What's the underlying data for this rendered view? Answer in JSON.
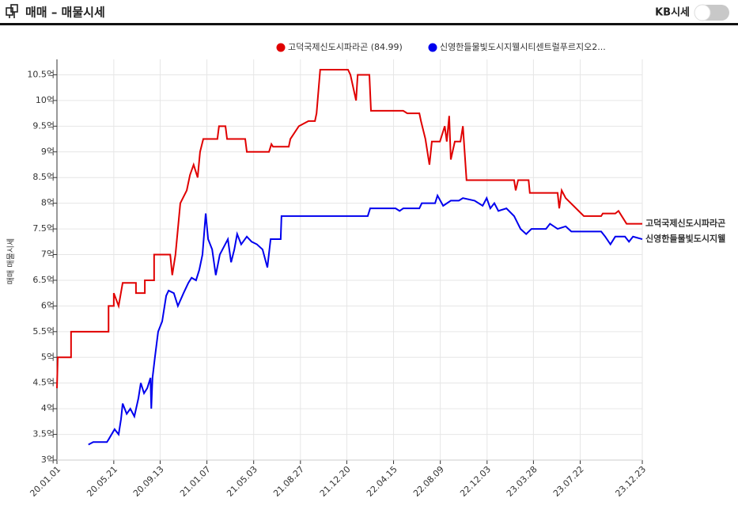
{
  "header": {
    "title": "매매 – 매물시세",
    "toggle_label": "KB시세"
  },
  "chart_data": {
    "type": "line",
    "y_label": "매매 매물시세",
    "legend": "top",
    "grid": true,
    "xlim": [
      "20.01.01",
      "23.12.23"
    ],
    "xticks": [
      "20.01.01",
      "20.05.21",
      "20.09.13",
      "21.01.07",
      "21.05.03",
      "21.08.27",
      "21.12.20",
      "22.04.15",
      "22.08.09",
      "22.12.03",
      "23.03.28",
      "23.07.22",
      "23.12.23"
    ],
    "ylim": [
      3,
      10.8
    ],
    "yticks": [
      {
        "value": 3,
        "label": "3억"
      },
      {
        "value": 3.5,
        "label": "3.5억"
      },
      {
        "value": 4,
        "label": "4억"
      },
      {
        "value": 4.5,
        "label": "4.5억"
      },
      {
        "value": 5,
        "label": "5억"
      },
      {
        "value": 5.5,
        "label": "5.5억"
      },
      {
        "value": 6,
        "label": "6억"
      },
      {
        "value": 6.5,
        "label": "6.5억"
      },
      {
        "value": 7,
        "label": "7억"
      },
      {
        "value": 7.5,
        "label": "7.5억"
      },
      {
        "value": 8,
        "label": "8억"
      },
      {
        "value": 8.5,
        "label": "8.5억"
      },
      {
        "value": 9,
        "label": "9억"
      },
      {
        "value": 9.5,
        "label": "9.5억"
      },
      {
        "value": 10,
        "label": "10억"
      },
      {
        "value": 10.5,
        "label": "10.5억"
      }
    ],
    "series": [
      {
        "name": "고덕국제신도시파라곤 (84.99)",
        "end_label": "고덕국제신도시파라곤",
        "color": "#e00000",
        "x": [
          "20.01.01",
          "20.01.03",
          "20.02.05",
          "20.02.05",
          "20.05.08",
          "20.05.08",
          "20.05.21",
          "20.05.21",
          "20.06.02",
          "20.06.12",
          "20.07.15",
          "20.07.15",
          "20.08.06",
          "20.08.06",
          "20.08.29",
          "20.08.29",
          "20.10.08",
          "20.10.13",
          "20.10.21",
          "20.11.02",
          "20.11.18",
          "20.11.26",
          "20.12.05",
          "20.12.15",
          "20.12.21",
          "20.12.29",
          "21.02.02",
          "21.02.06",
          "21.02.22",
          "21.02.26",
          "21.04.12",
          "21.04.16",
          "21.06.10",
          "21.06.16",
          "21.06.20",
          "21.07.29",
          "21.08.02",
          "21.08.23",
          "21.09.16",
          "21.10.02",
          "21.10.06",
          "21.10.15",
          "21.12.23",
          "21.12.29",
          "22.01.12",
          "22.01.16",
          "22.02.14",
          "22.02.18",
          "22.05.09",
          "22.05.19",
          "22.06.18",
          "22.06.22",
          "22.07.03",
          "22.07.13",
          "22.07.19",
          "22.08.08",
          "22.08.20",
          "22.08.25",
          "22.08.31",
          "22.09.04",
          "22.09.14",
          "22.09.28",
          "22.10.04",
          "22.10.13",
          "23.02.08",
          "23.02.12",
          "23.02.18",
          "23.03.16",
          "23.03.19",
          "23.05.27",
          "23.05.31",
          "23.06.06",
          "23.06.16",
          "23.07.31",
          "23.09.12",
          "23.09.16",
          "23.10.17",
          "23.10.25",
          "23.11.14",
          "23.12.23"
        ],
        "values": [
          4.4,
          5.0,
          5.0,
          5.5,
          5.5,
          6.0,
          6.0,
          6.25,
          6.0,
          6.45,
          6.45,
          6.25,
          6.25,
          6.5,
          6.5,
          7.0,
          7.0,
          6.6,
          7.0,
          8.0,
          8.25,
          8.55,
          8.75,
          8.5,
          9.0,
          9.25,
          9.25,
          9.5,
          9.5,
          9.25,
          9.25,
          9.0,
          9.0,
          9.15,
          9.1,
          9.1,
          9.25,
          9.5,
          9.6,
          9.6,
          9.75,
          10.6,
          10.6,
          10.5,
          10.0,
          10.5,
          10.5,
          9.8,
          9.8,
          9.75,
          9.75,
          9.6,
          9.25,
          8.75,
          9.2,
          9.2,
          9.5,
          9.2,
          9.7,
          8.85,
          9.2,
          9.2,
          9.5,
          8.45,
          8.45,
          8.25,
          8.45,
          8.45,
          8.2,
          8.2,
          7.9,
          8.25,
          8.1,
          7.75,
          7.75,
          7.8,
          7.8,
          7.85,
          7.6,
          7.6
        ]
      },
      {
        "name": "신영한들물빛도시지웰시티센트럴푸르지오2...",
        "end_label": "신영한들물빛도시지웰",
        "color": "#0000ee",
        "x": [
          "20.03.19",
          "20.03.31",
          "20.05.04",
          "20.05.08",
          "20.05.23",
          "20.06.02",
          "20.06.08",
          "20.06.12",
          "20.06.22",
          "20.07.01",
          "20.07.11",
          "20.07.21",
          "20.07.27",
          "20.08.04",
          "20.08.12",
          "20.08.20",
          "20.08.22",
          "20.08.25",
          "20.08.31",
          "20.09.08",
          "20.09.18",
          "20.09.28",
          "20.10.04",
          "20.10.17",
          "20.10.27",
          "20.11.10",
          "20.11.22",
          "20.11.30",
          "20.12.11",
          "20.12.19",
          "20.12.27",
          "21.01.04",
          "21.01.10",
          "21.01.20",
          "21.01.29",
          "21.02.08",
          "21.02.18",
          "21.02.28",
          "21.03.08",
          "21.03.16",
          "21.03.23",
          "21.04.02",
          "21.04.16",
          "21.04.28",
          "21.05.11",
          "21.05.25",
          "21.06.06",
          "21.06.14",
          "21.07.09",
          "21.07.11",
          "22.02.10",
          "22.02.16",
          "22.04.20",
          "22.04.30",
          "22.05.09",
          "22.06.18",
          "22.06.24",
          "22.07.27",
          "22.08.02",
          "22.08.16",
          "22.09.04",
          "22.09.24",
          "22.10.04",
          "22.11.02",
          "22.11.22",
          "22.12.02",
          "22.12.11",
          "22.12.21",
          "22.12.31",
          "23.01.20",
          "23.02.08",
          "23.02.24",
          "23.03.10",
          "23.03.23",
          "23.04.28",
          "23.05.08",
          "23.05.27",
          "23.06.16",
          "23.06.30",
          "23.09.12",
          "23.09.22",
          "23.10.05",
          "23.10.17",
          "23.11.10",
          "23.11.20",
          "23.11.30",
          "23.12.23"
        ],
        "values": [
          3.3,
          3.35,
          3.35,
          3.4,
          3.6,
          3.5,
          3.8,
          4.1,
          3.9,
          4.0,
          3.85,
          4.2,
          4.5,
          4.3,
          4.4,
          4.6,
          4.0,
          4.6,
          5.0,
          5.5,
          5.7,
          6.2,
          6.3,
          6.25,
          6.0,
          6.25,
          6.45,
          6.55,
          6.5,
          6.7,
          7.0,
          7.8,
          7.3,
          7.1,
          6.6,
          7.0,
          7.15,
          7.3,
          6.85,
          7.1,
          7.4,
          7.2,
          7.35,
          7.25,
          7.2,
          7.1,
          6.75,
          7.3,
          7.3,
          7.75,
          7.75,
          7.9,
          7.9,
          7.85,
          7.9,
          7.9,
          8.0,
          8.0,
          8.15,
          7.95,
          8.05,
          8.05,
          8.1,
          8.05,
          7.95,
          8.1,
          7.9,
          8.0,
          7.85,
          7.9,
          7.75,
          7.5,
          7.4,
          7.5,
          7.5,
          7.6,
          7.5,
          7.55,
          7.45,
          7.45,
          7.35,
          7.2,
          7.35,
          7.35,
          7.25,
          7.35,
          7.3
        ]
      }
    ]
  }
}
